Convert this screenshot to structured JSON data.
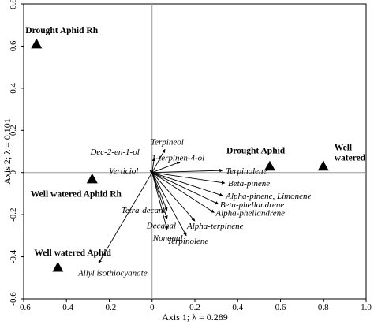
{
  "chart_data": {
    "type": "biplot",
    "xlabel": "Axis 1; λ = 0.289",
    "ylabel": "Axis 2; λ = 0.101",
    "xlim": [
      -0.6,
      1.0
    ],
    "ylim": [
      -0.6,
      0.8
    ],
    "xticks": [
      "-0.6",
      "-0.4",
      "-0.2",
      "0",
      "0.2",
      "0.4",
      "0.6",
      "0.8",
      "1.0"
    ],
    "yticks": [
      "-0.6",
      "-0.4",
      "-0.2",
      "0",
      "0.2",
      "0.4",
      "0.6",
      "0.8"
    ],
    "reference_lines": true,
    "treatments": [
      {
        "label": "Drought Aphid Rh",
        "x": -0.54,
        "y": 0.61
      },
      {
        "label": "Drought Aphid",
        "x": 0.55,
        "y": 0.03
      },
      {
        "label": "Well\nwatered",
        "x": 0.8,
        "y": 0.03
      },
      {
        "label": "Well watered Aphid Rh",
        "x": -0.28,
        "y": -0.03
      },
      {
        "label": "Well watered Aphid",
        "x": -0.44,
        "y": -0.45
      }
    ],
    "variables": [
      {
        "label": "Terpineol",
        "x": 0.06,
        "y": 0.11
      },
      {
        "label": "Dec-2-en-1-ol",
        "x": 0.01,
        "y": 0.07
      },
      {
        "label": "1-terpinen-4-ol",
        "x": 0.13,
        "y": 0.05
      },
      {
        "label": "Verticiol",
        "x": -0.01,
        "y": 0.01
      },
      {
        "label": "Terpinolene",
        "x": 0.33,
        "y": 0.01
      },
      {
        "label": "Beta-pinene",
        "x": 0.34,
        "y": -0.05
      },
      {
        "label": "Alpha-pinene, Limonene",
        "x": 0.33,
        "y": -0.11
      },
      {
        "label": "Beta-phellandrene",
        "x": 0.31,
        "y": -0.15
      },
      {
        "label": "Alpha-phellandrene",
        "x": 0.29,
        "y": -0.19
      },
      {
        "label": "Alpha-terpinene",
        "x": 0.2,
        "y": -0.23
      },
      {
        "label": "Tetra-decane",
        "x": 0.07,
        "y": -0.18
      },
      {
        "label": "Decanal",
        "x": 0.07,
        "y": -0.22
      },
      {
        "label": "Terpinolene",
        "x": 0.16,
        "y": -0.3
      },
      {
        "label": "Nonanal",
        "x": 0.07,
        "y": -0.27
      },
      {
        "label": "Allyl isothiocyanate",
        "x": -0.25,
        "y": -0.43
      }
    ]
  }
}
